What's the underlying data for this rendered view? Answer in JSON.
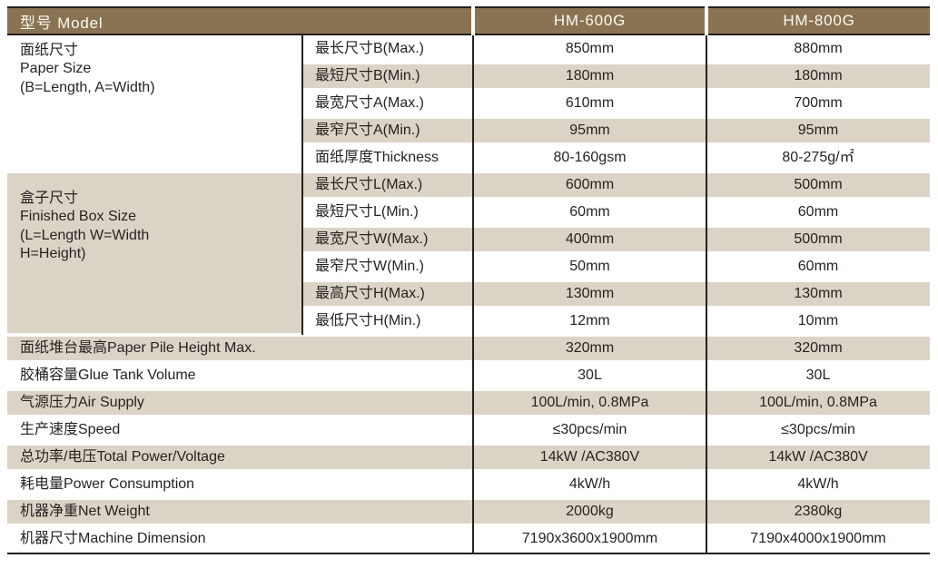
{
  "header": {
    "model_label": "型号 Model",
    "col1": "HM-600G",
    "col2": "HM-800G"
  },
  "groups": [
    {
      "title_zh": "面纸尺寸",
      "title_en": "Paper Size",
      "title_note": "(B=Length, A=Width)",
      "rows": [
        {
          "param": "最长尺寸B(Max.)",
          "v1": "850mm",
          "v2": "880mm"
        },
        {
          "param": "最短尺寸B(Min.)",
          "v1": "180mm",
          "v2": "180mm"
        },
        {
          "param": "最宽尺寸A(Max.)",
          "v1": "610mm",
          "v2": "700mm"
        },
        {
          "param": "最窄尺寸A(Min.)",
          "v1": "95mm",
          "v2": "95mm"
        },
        {
          "param": "面纸厚度Thickness",
          "v1": "80-160gsm",
          "v2": "80-275g/㎡"
        }
      ]
    },
    {
      "title_zh": "盒子尺寸",
      "title_en": "Finished Box Size",
      "title_note": "(L=Length  W=Width\nH=Height)",
      "rows": [
        {
          "param": "最长尺寸L(Max.)",
          "v1": "600mm",
          "v2": "500mm"
        },
        {
          "param": "最短尺寸L(Min.)",
          "v1": "60mm",
          "v2": "60mm"
        },
        {
          "param": "最宽尺寸W(Max.)",
          "v1": "400mm",
          "v2": "500mm"
        },
        {
          "param": "最窄尺寸W(Min.)",
          "v1": "50mm",
          "v2": "60mm"
        },
        {
          "param": "最高尺寸H(Max.)",
          "v1": "130mm",
          "v2": "130mm"
        },
        {
          "param": "最低尺寸H(Min.)",
          "v1": "12mm",
          "v2": "10mm"
        }
      ]
    }
  ],
  "rows": [
    {
      "param": "面纸堆台最高Paper Pile Height Max.",
      "v1": "320mm",
      "v2": "320mm"
    },
    {
      "param": "胶桶容量Glue Tank Volume",
      "v1": "30L",
      "v2": "30L"
    },
    {
      "param": "气源压力Air Supply",
      "v1": "100L/min, 0.8MPa",
      "v2": "100L/min, 0.8MPa"
    },
    {
      "param": "生产速度Speed",
      "v1": "≤30pcs/min",
      "v2": "≤30pcs/min"
    },
    {
      "param": "总功率/电压Total Power/Voltage",
      "v1": "14kW /AC380V",
      "v2": "14kW /AC380V"
    },
    {
      "param": "耗电量Power Consumption",
      "v1": "4kW/h",
      "v2": "4kW/h"
    },
    {
      "param": "机器净重Net Weight",
      "v1": "2000kg",
      "v2": "2380kg"
    },
    {
      "param": "机器尺寸Machine Dimension",
      "v1": "7190x3600x1900mm",
      "v2": "7190x4000x1900mm"
    }
  ],
  "colors": {
    "header_bg": "#8a7352",
    "stripe_bg": "#dbd3c6",
    "rule": "#26211d",
    "header_text": "#faf8f2",
    "body_text": "#272321"
  }
}
